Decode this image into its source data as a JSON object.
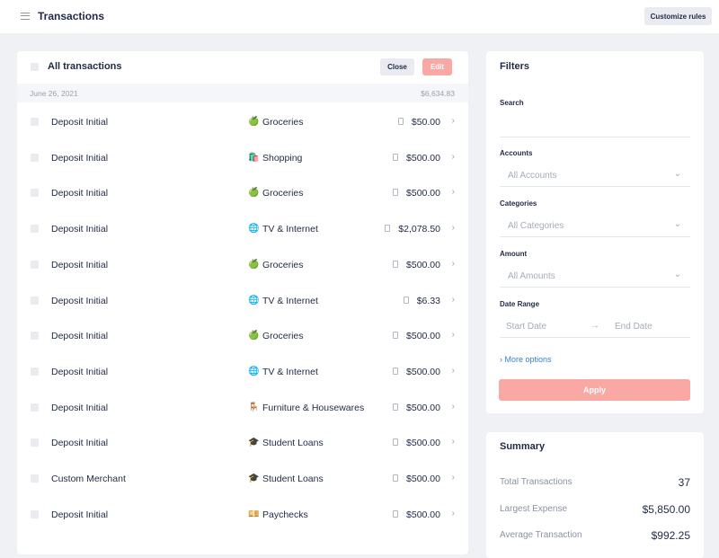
{
  "header": {
    "title": "Transactions",
    "button": "Customize rules"
  },
  "transactions": {
    "title": "All transactions",
    "close": "Close",
    "edit": "Edit",
    "group": {
      "date": "June 26, 2021",
      "total": "$6,634.83"
    },
    "rows": [
      {
        "merchant": "Deposit Initial",
        "icon": "🍏",
        "category": "Groceries",
        "amount": "$50.00"
      },
      {
        "merchant": "Deposit Initial",
        "icon": "🛍️",
        "category": "Shopping",
        "amount": "$500.00"
      },
      {
        "merchant": "Deposit Initial",
        "icon": "🍏",
        "category": "Groceries",
        "amount": "$500.00"
      },
      {
        "merchant": "Deposit Initial",
        "icon": "🌐",
        "category": "TV & Internet",
        "amount": "$2,078.50"
      },
      {
        "merchant": "Deposit Initial",
        "icon": "🍏",
        "category": "Groceries",
        "amount": "$500.00"
      },
      {
        "merchant": "Deposit Initial",
        "icon": "🌐",
        "category": "TV & Internet",
        "amount": "$6.33"
      },
      {
        "merchant": "Deposit Initial",
        "icon": "🍏",
        "category": "Groceries",
        "amount": "$500.00"
      },
      {
        "merchant": "Deposit Initial",
        "icon": "🌐",
        "category": "TV & Internet",
        "amount": "$500.00"
      },
      {
        "merchant": "Deposit Initial",
        "icon": "🪑",
        "category": "Furniture & Housewares",
        "amount": "$500.00"
      },
      {
        "merchant": "Deposit Initial",
        "icon": "🎓",
        "category": "Student Loans",
        "amount": "$500.00"
      },
      {
        "merchant": "Custom Merchant",
        "icon": "🎓",
        "category": "Student Loans",
        "amount": "$500.00"
      },
      {
        "merchant": "Deposit Initial",
        "icon": "💴",
        "category": "Paychecks",
        "amount": "$500.00"
      }
    ]
  },
  "filters": {
    "title": "Filters",
    "search": "Search",
    "accounts": "Accounts",
    "accounts_value": "All Accounts",
    "categories": "Categories",
    "categories_value": "All Categories",
    "amount": "Amount",
    "amount_value": "All Amounts",
    "date_range": "Date Range",
    "start": "Start Date",
    "end": "End Date",
    "more": "More options",
    "apply": "Apply"
  },
  "summary": {
    "title": "Summary",
    "items": [
      {
        "label": "Total Transactions",
        "value": "37"
      },
      {
        "label": "Largest Expense",
        "value": "$5,850.00"
      },
      {
        "label": "Average Transaction",
        "value": "$992.25"
      }
    ]
  }
}
